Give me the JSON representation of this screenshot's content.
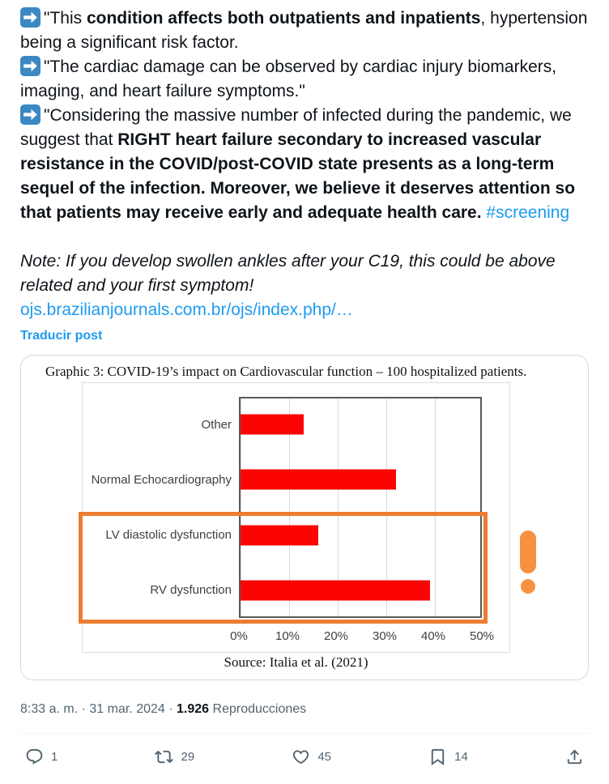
{
  "colors": {
    "bar_red": "#fa0404",
    "highlight_orange": "#ed7d31",
    "exclaim_orange": "#f6923f",
    "link_blue": "#1d9bf0",
    "emoji_blue": "#3b88c3",
    "text_dark": "#0f1419",
    "text_gray": "#536471"
  },
  "post": {
    "paragraphs": [
      {
        "segments": [
          {
            "emoji": "arrow-right-emoji"
          },
          {
            "text": "\"This "
          },
          {
            "text": "condition affects both outpatients and inpatients",
            "bold": true
          },
          {
            "text": ", hypertension being a significant risk factor."
          }
        ]
      },
      {
        "segments": [
          {
            "emoji": "arrow-right-emoji"
          },
          {
            "text": "\"The cardiac damage can be observed by cardiac injury biomarkers, imaging, and heart failure symptoms.\""
          }
        ]
      },
      {
        "segments": [
          {
            "emoji": "arrow-right-emoji"
          },
          {
            "text": "\"Considering the massive number of infected during the pandemic, we suggest that "
          },
          {
            "text": "RIGHT heart failure secondary to increased vascular resistance in the COVID/post-COVID state presents as a long-term sequel of the infection. Moreover, we believe it deserves attention so that patients may receive early and adequate health care.",
            "bold": true
          },
          {
            "text": " "
          },
          {
            "text": "#screening",
            "hashtag": true
          }
        ]
      },
      {
        "blank": true
      },
      {
        "italic": true,
        "segments": [
          {
            "text": "Note: If you develop swollen ankles after your C19, this could be above related and your first symptom!"
          }
        ]
      }
    ],
    "url_display": "ojs.brazilianjournals.com.br/ojs/index.php/…",
    "translate_label": "Traducir post"
  },
  "chart_data": {
    "type": "bar",
    "orientation": "horizontal",
    "title": "Graphic 3: COVID-19’s impact on Cardiovascular function – 100 hospitalized patients.",
    "categories": [
      "Other",
      "Normal Echocardiography",
      "LV diastolic dysfunction",
      "RV dysfunction"
    ],
    "values": [
      13,
      32,
      16,
      39
    ],
    "unit": "%",
    "xlim": [
      0,
      50
    ],
    "xticks": [
      "0%",
      "10%",
      "20%",
      "30%",
      "40%",
      "50%"
    ],
    "grid": "vertical",
    "legend": "none",
    "source": "Source: Italia et al. (2021)",
    "highlight": {
      "categories": [
        "LV diastolic dysfunction",
        "RV dysfunction"
      ],
      "annotation": "exclamation-mark"
    }
  },
  "meta": {
    "time": "8:33 a. m.",
    "separator": "·",
    "date": "31 mar. 2024",
    "views_count": "1.926",
    "views_label": "Reproducciones"
  },
  "actions": {
    "reply_count": "1",
    "repost_count": "29",
    "like_count": "45",
    "bookmark_count": "14"
  }
}
